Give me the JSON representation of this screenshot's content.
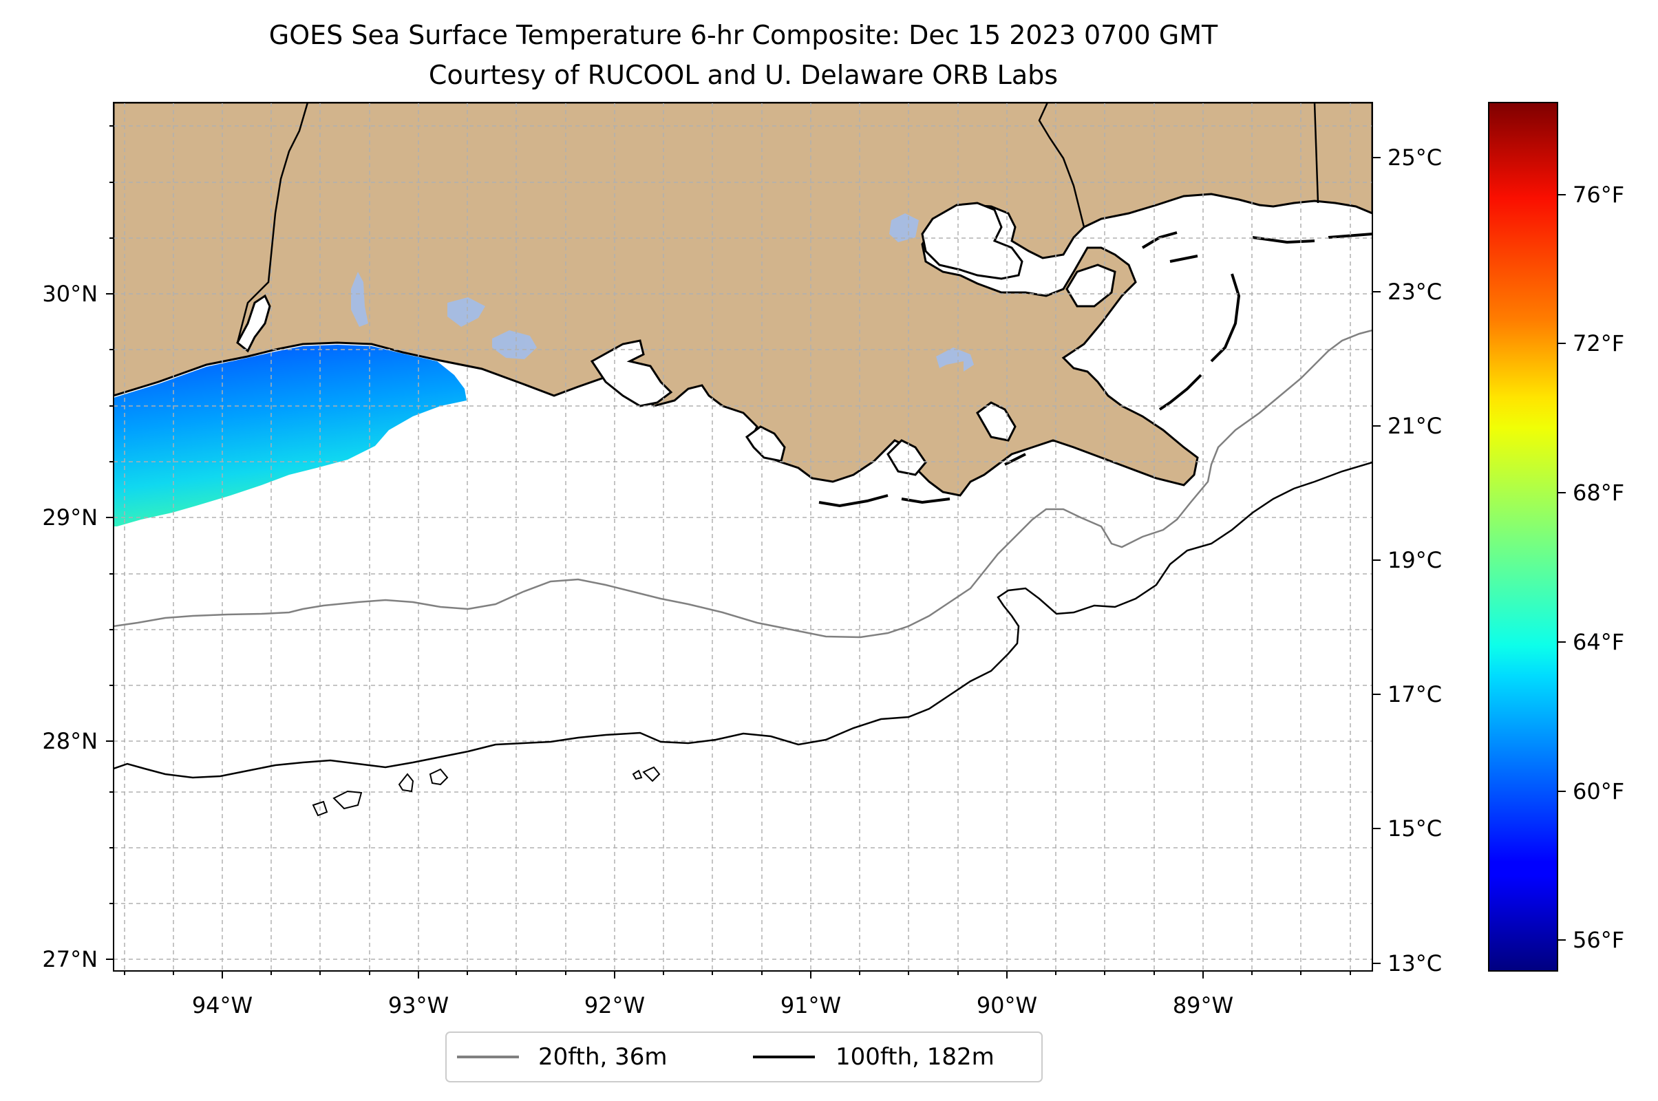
{
  "title": {
    "line1": "GOES Sea Surface Temperature 6-hr Composite: Dec 15 2023 0700 GMT",
    "line2": "Courtesy of RUCOOL and U. Delaware ORB Labs"
  },
  "colors": {
    "land": "#d2b48c",
    "inland_water": "#a4bde6",
    "ocean_nodata": "#ffffff",
    "contour_20fth": "#808080",
    "contour_100fth": "#000000",
    "grid": "#b0b0b0"
  },
  "map": {
    "lon_range": [
      -94.55,
      -88.17
    ],
    "lat_range": [
      26.94,
      30.84
    ],
    "lon_ticks": [
      "94°W",
      "93°W",
      "92°W",
      "91°W",
      "90°W",
      "89°W"
    ],
    "lat_ticks": [
      "27°N",
      "28°N",
      "29°N",
      "30°N"
    ],
    "grid": true
  },
  "legend": {
    "placement": "bottom-center",
    "items": [
      {
        "label": "20fth, 36m"
      },
      {
        "label": "100fth, 182m"
      }
    ]
  },
  "colorbar": {
    "colormap": "jet",
    "range_c": [
      12.9,
      25.8
    ],
    "celsius_ticks": [
      "25°C",
      "23°C",
      "21°C",
      "19°C",
      "17°C",
      "15°C",
      "13°C"
    ],
    "fahrenheit_ticks": [
      "76°F",
      "72°F",
      "68°F",
      "64°F",
      "60°F",
      "56°F"
    ]
  }
}
